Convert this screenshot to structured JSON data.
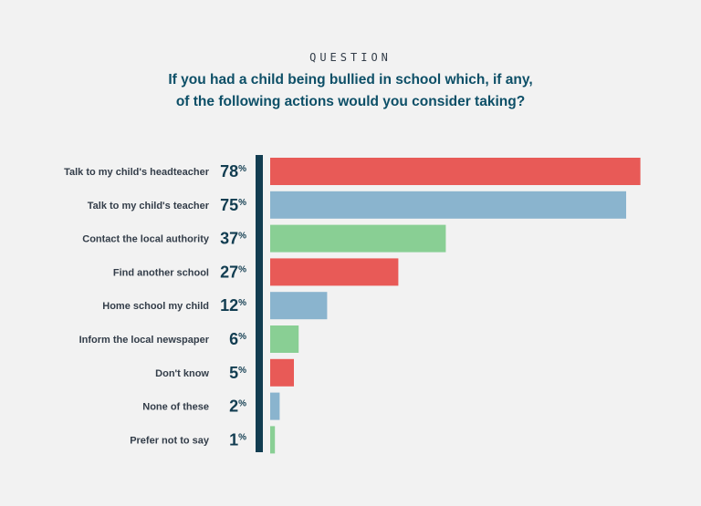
{
  "header": {
    "kicker": "QUESTION",
    "title_line1": "If you had a child being bullied in school which, if any,",
    "title_line2": "of the following actions would you consider taking?"
  },
  "chart_data": {
    "type": "bar",
    "orientation": "horizontal",
    "title": "If you had a child being bullied in school which, if any, of the following actions would you consider taking?",
    "categories": [
      "Talk to my child's headteacher",
      "Talk to my child's teacher",
      "Contact the local authority",
      "Find another school",
      "Home school my child",
      "Inform the local newspaper",
      "Don't know",
      "None of these",
      "Prefer not to say"
    ],
    "values": [
      78,
      75,
      37,
      27,
      12,
      6,
      5,
      2,
      1
    ],
    "value_labels": [
      "78",
      "75",
      "37",
      "27",
      "12",
      "6",
      "5",
      "2",
      "1"
    ],
    "unit": "%",
    "xlim": [
      0,
      80
    ],
    "colors": [
      "#e85a57",
      "#8ab4ce",
      "#89cf94",
      "#e85a57",
      "#8ab4ce",
      "#89cf94",
      "#e85a57",
      "#8ab4ce",
      "#89cf94"
    ],
    "axis_color": "#123d51",
    "grid": false,
    "legend": "none"
  }
}
